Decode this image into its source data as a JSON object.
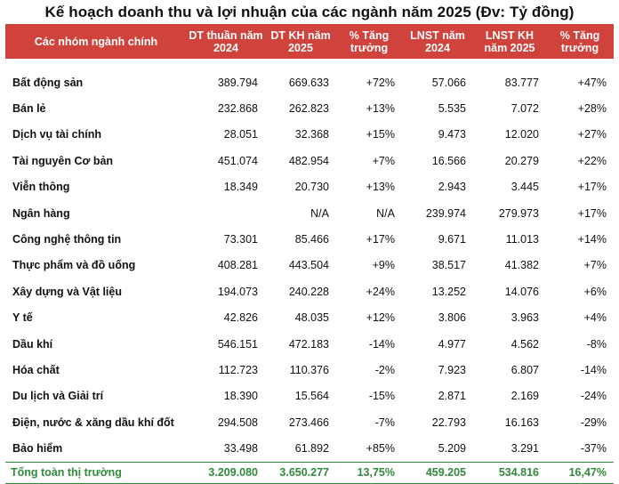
{
  "title": "Kế hoạch doanh thu và lợi nhuận của các ngành năm 2025 (Đv: Tỷ đồng)",
  "headers": [
    "Các nhóm ngành chính",
    "DT thuần năm 2024",
    "DT KH năm 2025",
    "% Tăng trưởng",
    "LNST năm 2024",
    "LNST KH năm 2025",
    "% Tăng trưởng"
  ],
  "rows": [
    [
      "Bất động sản",
      "389.794",
      "669.633",
      "+72%",
      "57.066",
      "83.777",
      "+47%"
    ],
    [
      "Bán lẻ",
      "232.868",
      "262.823",
      "+13%",
      "5.535",
      "7.072",
      "+28%"
    ],
    [
      "Dịch vụ tài chính",
      "28.051",
      "32.368",
      "+15%",
      "9.473",
      "12.020",
      "+27%"
    ],
    [
      "Tài nguyên Cơ bản",
      "451.074",
      "482.954",
      "+7%",
      "16.566",
      "20.279",
      "+22%"
    ],
    [
      "Viễn thông",
      "18.349",
      "20.730",
      "+13%",
      "2.943",
      "3.445",
      "+17%"
    ],
    [
      "Ngân hàng",
      "",
      "N/A",
      "N/A",
      "239.974",
      "279.973",
      "+17%"
    ],
    [
      "Công nghệ thông tin",
      "73.301",
      "85.466",
      "+17%",
      "9.671",
      "11.013",
      "+14%"
    ],
    [
      "Thực phẩm và đồ uống",
      "408.281",
      "443.504",
      "+9%",
      "38.517",
      "41.382",
      "+7%"
    ],
    [
      "Xây dựng và Vật liệu",
      "194.073",
      "240.228",
      "+24%",
      "13.252",
      "14.076",
      "+6%"
    ],
    [
      "Y tế",
      "42.826",
      "48.035",
      "+12%",
      "3.806",
      "3.963",
      "+4%"
    ],
    [
      "Dầu khí",
      "546.151",
      "472.183",
      "-14%",
      "4.977",
      "4.562",
      "-8%"
    ],
    [
      "Hóa chất",
      "112.723",
      "110.376",
      "-2%",
      "7.923",
      "6.807",
      "-14%"
    ],
    [
      "Du lịch và Giải trí",
      "18.390",
      "15.564",
      "-15%",
      "2.871",
      "2.169",
      "-24%"
    ],
    [
      "Điện, nước & xăng dầu khí đốt",
      "294.508",
      "273.466",
      "-7%",
      "22.793",
      "16.163",
      "-29%"
    ],
    [
      "Bảo hiểm",
      "33.498",
      "61.892",
      "+85%",
      "5.209",
      "3.291",
      "-37%"
    ]
  ],
  "total": [
    "Tổng toàn thị trường",
    "3.209.080",
    "3.650.277",
    "13,75%",
    "459.205",
    "534.816",
    "16,47%"
  ],
  "colors": {
    "header_bg": "#d0433c",
    "header_text": "#ffffff",
    "total_text": "#2e8b3a"
  }
}
